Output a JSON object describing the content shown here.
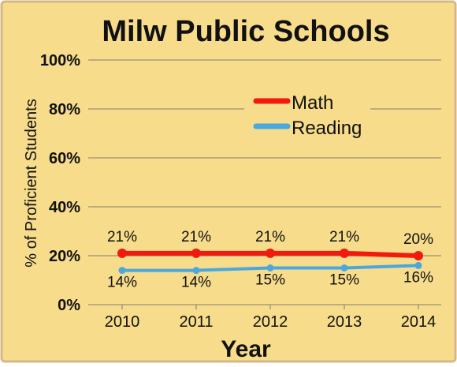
{
  "chart_data": {
    "type": "line",
    "title": "Milw Public Schools",
    "xlabel": "Year",
    "ylabel": "% of Proficient Students",
    "x": [
      "2010",
      "2011",
      "2012",
      "2013",
      "2014"
    ],
    "ylim": [
      0,
      100
    ],
    "yticks": [
      "0%",
      "20%",
      "40%",
      "60%",
      "80%",
      "100%"
    ],
    "grid": true,
    "legend": "top-right",
    "series": [
      {
        "name": "Math",
        "color": "#f01a0f",
        "values": [
          21,
          21,
          21,
          21,
          20
        ],
        "labels": [
          "21%",
          "21%",
          "21%",
          "21%",
          "20%"
        ]
      },
      {
        "name": "Reading",
        "color": "#4aa8df",
        "values": [
          14,
          14,
          15,
          15,
          16
        ],
        "labels": [
          "14%",
          "14%",
          "15%",
          "15%",
          "16%"
        ]
      }
    ]
  },
  "colors": {
    "background": "#f7dc8b",
    "border": "#d4b88a",
    "grid": "#9a9079",
    "text": "#111111"
  }
}
